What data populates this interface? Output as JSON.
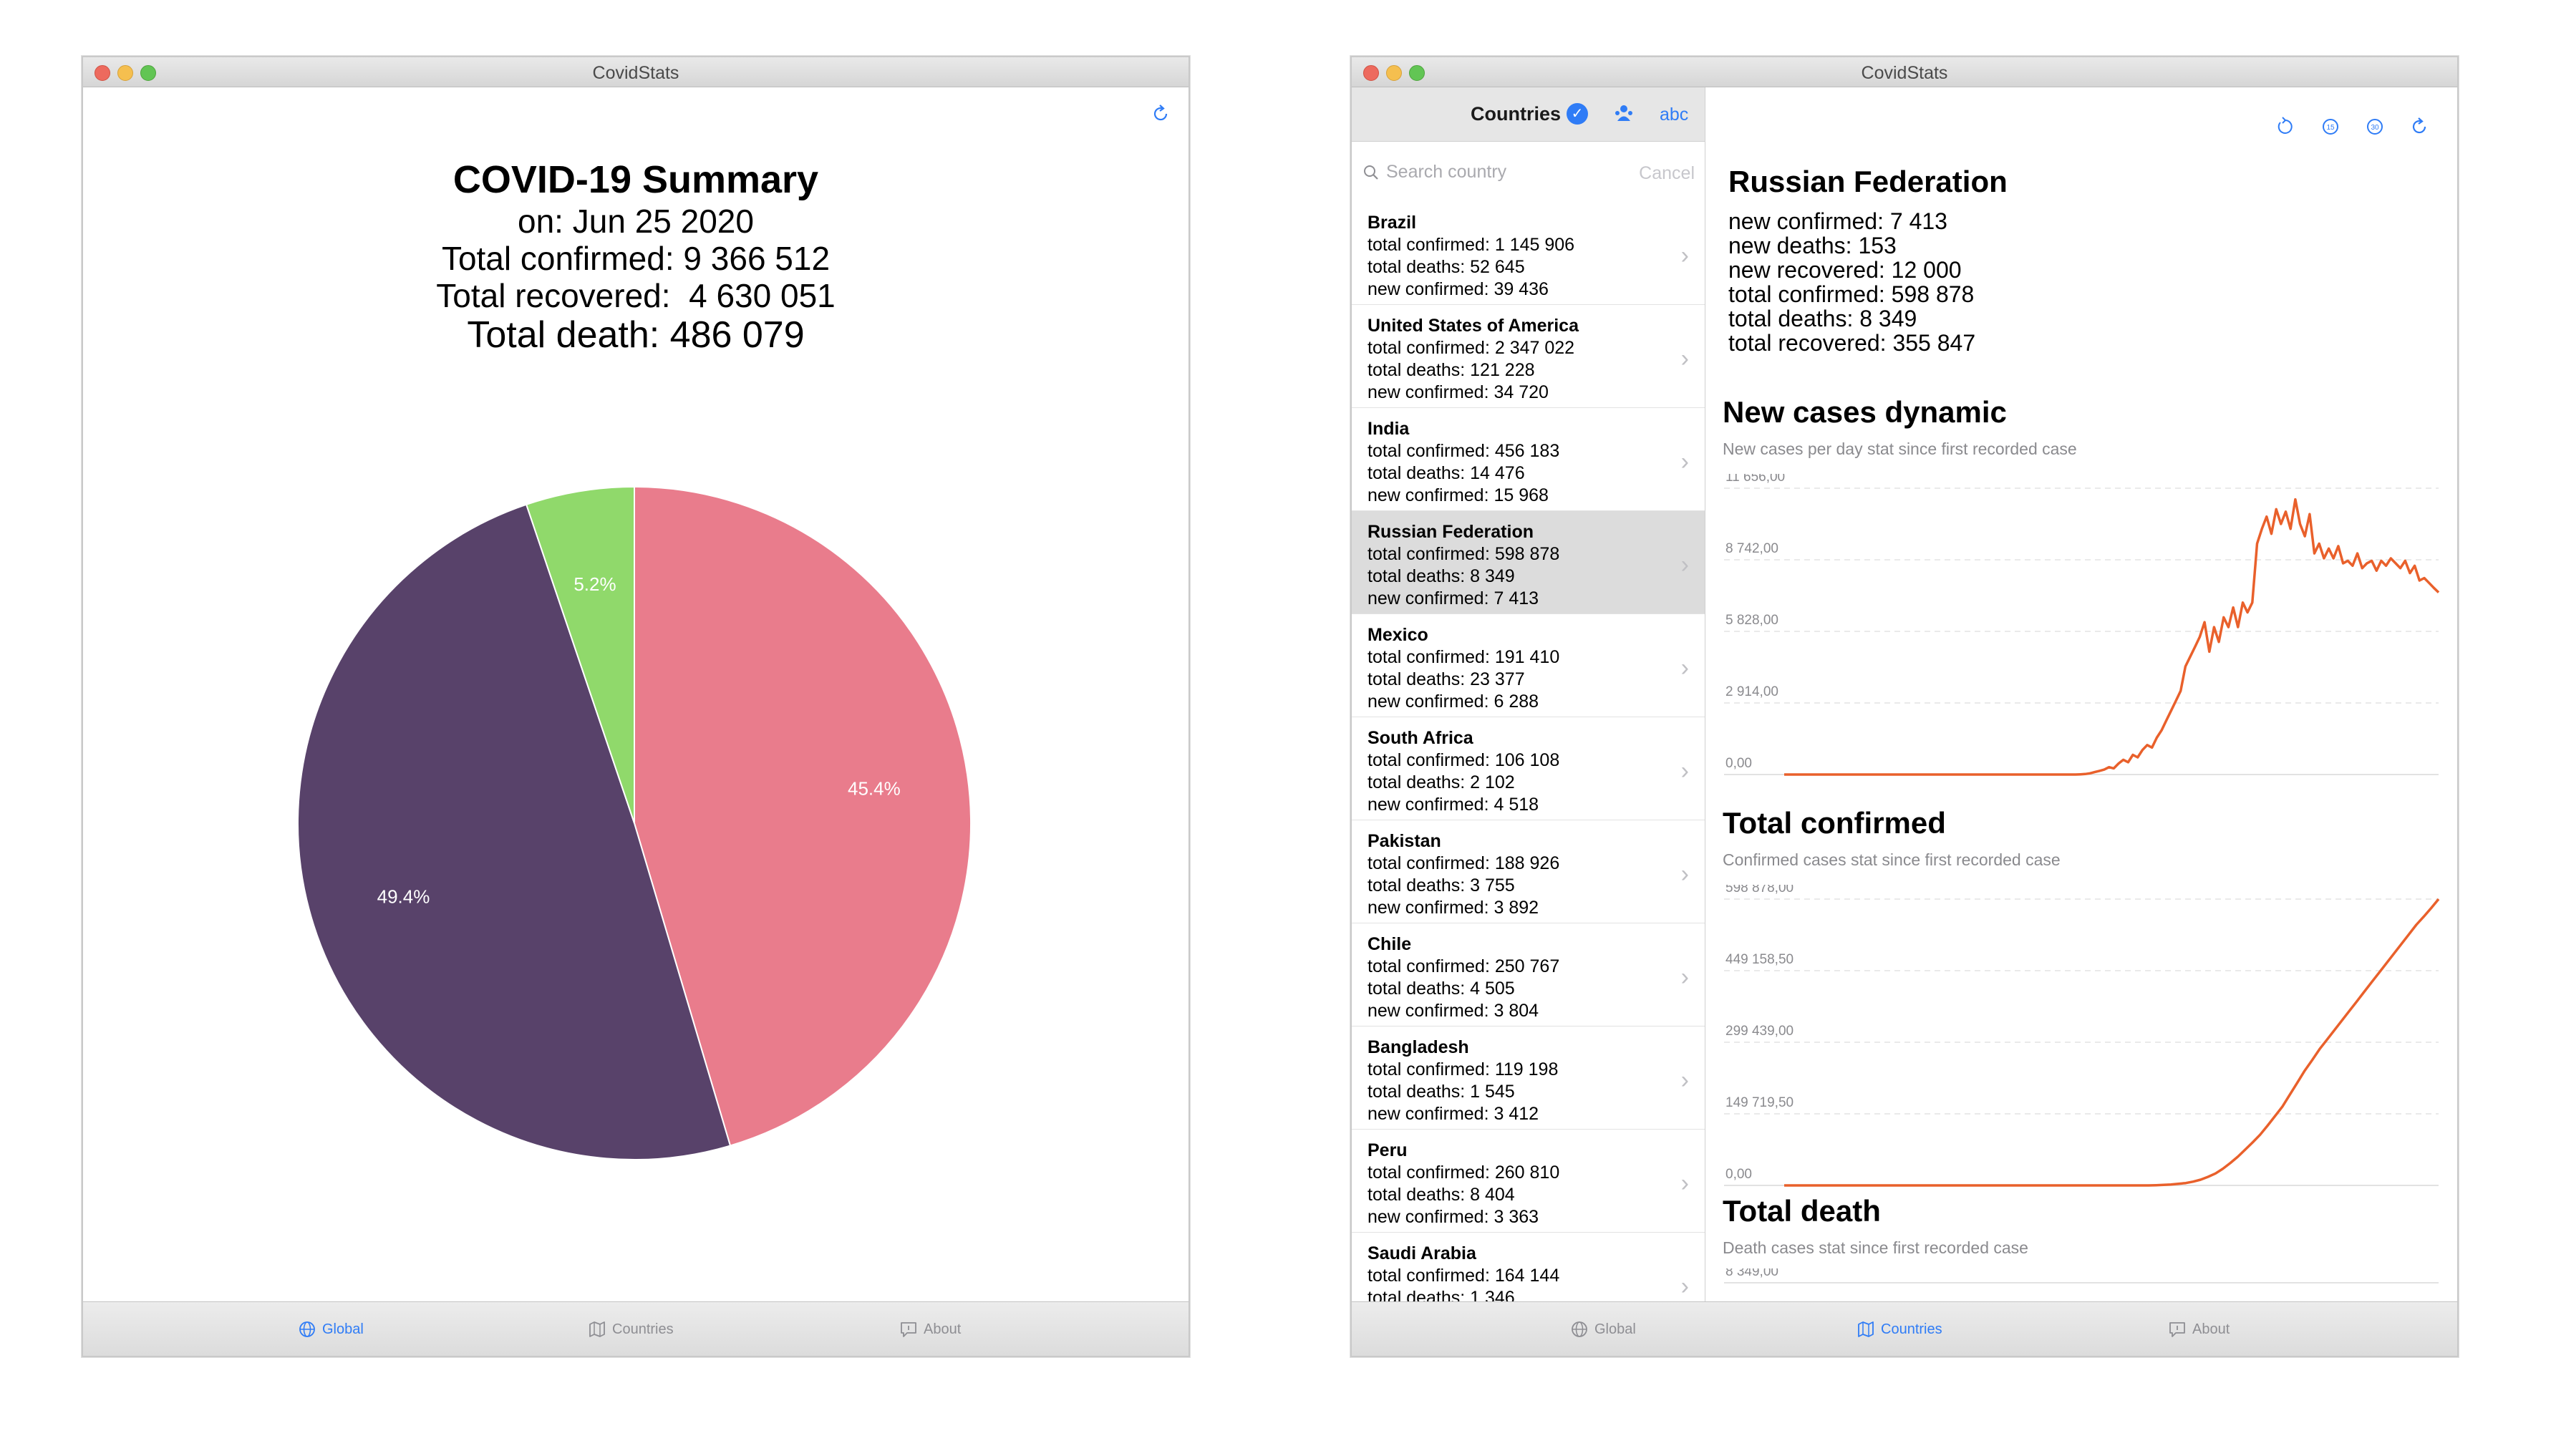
{
  "app": {
    "title": "CovidStats"
  },
  "tabs": [
    {
      "label": "Global"
    },
    {
      "label": "Countries"
    },
    {
      "label": "About"
    }
  ],
  "summary": {
    "title": "COVID-19 Summary",
    "date": "on: Jun 25 2020",
    "confirmed": "Total confirmed: 9 366 512",
    "recovered": "Total recovered:  4 630 051",
    "death": "Total death: 486 079"
  },
  "colors": {
    "accent": "#2f7cf6",
    "chart_line": "#e9602b",
    "pie": [
      "#e97c8c",
      "#58426a",
      "#90d96b"
    ]
  },
  "chart_data": [
    {
      "type": "pie",
      "labels": [
        "45.4%",
        "49.4%",
        "5.2%"
      ],
      "values": [
        45.4,
        49.4,
        5.2
      ],
      "colors": [
        "#e97c8c",
        "#58426a",
        "#90d96b"
      ]
    },
    {
      "type": "line",
      "title": "New cases dynamic",
      "subtitle": "New cases per day stat since first recorded case",
      "ytick_labels": [
        "0,00",
        "2 914,00",
        "5 828,00",
        "8 742,00",
        "11 656,00"
      ],
      "ylim": [
        0,
        11656
      ],
      "values": [
        0,
        0,
        0,
        0,
        0,
        0,
        0,
        0,
        0,
        0,
        0,
        0,
        0,
        0,
        0,
        0,
        0,
        0,
        0,
        0,
        0,
        0,
        0,
        0,
        0,
        0,
        0,
        0,
        0,
        0,
        0,
        0,
        0,
        0,
        0,
        0,
        0,
        0,
        0,
        0,
        0,
        0,
        0,
        0,
        0,
        0,
        0,
        0,
        0,
        0,
        0,
        0,
        0,
        0,
        0,
        0,
        0,
        0,
        0,
        0,
        0,
        0,
        10,
        20,
        50,
        100,
        150,
        200,
        300,
        250,
        450,
        600,
        500,
        800,
        700,
        1000,
        1200,
        1100,
        1500,
        1800,
        2200,
        2600,
        3000,
        3400,
        4400,
        4800,
        5200,
        5600,
        6200,
        5000,
        6000,
        5400,
        6400,
        6000,
        6800,
        6000,
        7000,
        6600,
        7000,
        9400,
        10000,
        10500,
        9800,
        10800,
        10200,
        10700,
        10000,
        11200,
        10200,
        9700,
        10600,
        9000,
        9400,
        8800,
        9200,
        8800,
        9300,
        8600,
        8700,
        8500,
        9000,
        8400,
        8600,
        8700,
        8300,
        8700,
        8500,
        8800,
        8600,
        8400,
        8700,
        8200,
        8500,
        7900,
        8000,
        7800,
        7600,
        7413
      ]
    },
    {
      "type": "line",
      "title": "Total confirmed",
      "subtitle": "Confirmed cases stat since first recorded case",
      "ytick_labels": [
        "0,00",
        "149 719,50",
        "299 439,00",
        "449 158,50",
        "598 878,00"
      ],
      "ylim": [
        0,
        598878
      ],
      "values": [
        0,
        0,
        0,
        0,
        0,
        0,
        0,
        0,
        0,
        0,
        0,
        0,
        0,
        0,
        0,
        0,
        0,
        0,
        0,
        0,
        0,
        0,
        0,
        0,
        0,
        0,
        0,
        0,
        0,
        0,
        0,
        0,
        0,
        0,
        0,
        0,
        0,
        0,
        0,
        0,
        0,
        0,
        0,
        0,
        0,
        0,
        0,
        0,
        0,
        0,
        500,
        1000,
        2000,
        3500,
        5000,
        8000,
        12000,
        18000,
        25000,
        35000,
        47000,
        60000,
        75000,
        90000,
        106000,
        125000,
        145000,
        165000,
        190000,
        215000,
        240000,
        262000,
        285000,
        305000,
        325000,
        345000,
        365000,
        385000,
        405000,
        425000,
        445000,
        465000,
        485000,
        505000,
        525000,
        545000,
        562000,
        580000,
        598878
      ]
    },
    {
      "type": "line",
      "title": "Total death",
      "subtitle": "Death cases stat since first recorded case",
      "ytick_labels": [
        "8 349,00"
      ],
      "ylim": [
        0,
        8349
      ],
      "values": []
    }
  ],
  "sidebar": {
    "title": "Countries",
    "abc_label": "abc",
    "search_placeholder": "Search country",
    "cancel_label": "Cancel",
    "countries": [
      {
        "name": "Brazil",
        "total_confirmed": "total confirmed: 1 145 906",
        "total_deaths": "total deaths: 52 645",
        "new_confirmed": "new confirmed: 39 436"
      },
      {
        "name": "United States of America",
        "total_confirmed": "total confirmed: 2 347 022",
        "total_deaths": "total deaths: 121 228",
        "new_confirmed": "new confirmed: 34 720"
      },
      {
        "name": "India",
        "total_confirmed": "total confirmed: 456 183",
        "total_deaths": "total deaths: 14 476",
        "new_confirmed": "new confirmed: 15 968"
      },
      {
        "name": "Russian Federation",
        "total_confirmed": "total confirmed: 598 878",
        "total_deaths": "total deaths: 8 349",
        "new_confirmed": "new confirmed: 7 413"
      },
      {
        "name": "Mexico",
        "total_confirmed": "total confirmed: 191 410",
        "total_deaths": "total deaths: 23 377",
        "new_confirmed": "new confirmed: 6 288"
      },
      {
        "name": "South Africa",
        "total_confirmed": "total confirmed: 106 108",
        "total_deaths": "total deaths: 2 102",
        "new_confirmed": "new confirmed: 4 518"
      },
      {
        "name": "Pakistan",
        "total_confirmed": "total confirmed: 188 926",
        "total_deaths": "total deaths: 3 755",
        "new_confirmed": "new confirmed: 3 892"
      },
      {
        "name": "Chile",
        "total_confirmed": "total confirmed: 250 767",
        "total_deaths": "total deaths: 4 505",
        "new_confirmed": "new confirmed: 3 804"
      },
      {
        "name": "Bangladesh",
        "total_confirmed": "total confirmed: 119 198",
        "total_deaths": "total deaths: 1 545",
        "new_confirmed": "new confirmed: 3 412"
      },
      {
        "name": "Peru",
        "total_confirmed": "total confirmed: 260 810",
        "total_deaths": "total deaths: 8 404",
        "new_confirmed": "new confirmed: 3 363"
      },
      {
        "name": "Saudi Arabia",
        "total_confirmed": "total confirmed: 164 144",
        "total_deaths": "total deaths: 1 346",
        "new_confirmed": ""
      }
    ],
    "selected_index": 3
  },
  "detail": {
    "country": "Russian Federation",
    "stats": [
      "new confirmed: 7 413",
      "new deaths: 153",
      "new recovered: 12 000",
      "total confirmed: 598 878",
      "total deaths: 8 349",
      "total recovered: 355 847"
    ]
  }
}
